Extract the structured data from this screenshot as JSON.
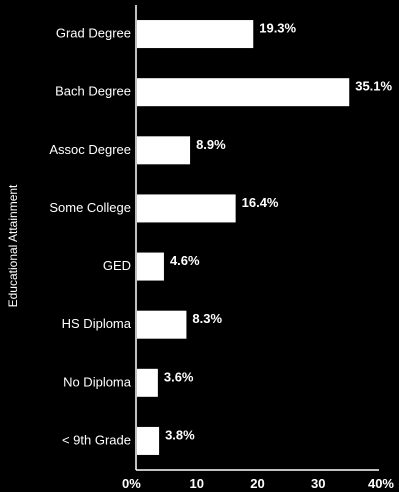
{
  "chart_data": {
    "type": "bar",
    "orientation": "horizontal",
    "categories": [
      "Grad Degree",
      "Bach Degree",
      "Assoc Degree",
      "Some College",
      "GED",
      "HS Diploma",
      "No Diploma",
      "< 9th Grade"
    ],
    "values": [
      19.3,
      35.1,
      8.9,
      16.4,
      4.6,
      8.3,
      3.6,
      3.8
    ],
    "value_labels": [
      "19.3%",
      "35.1%",
      "8.9%",
      "16.4%",
      "4.6%",
      "8.3%",
      "3.6%",
      "3.8%"
    ],
    "ylabel": "Educational Attainment",
    "xlim": [
      0,
      40
    ],
    "x_ticks": [
      0,
      10,
      20,
      30,
      40
    ],
    "x_tick_labels": [
      "0%",
      "10",
      "20",
      "30",
      "40%"
    ],
    "grid": false,
    "colors": {
      "background": "#000000",
      "bar": "#ffffff",
      "text": "#ffffff"
    }
  }
}
